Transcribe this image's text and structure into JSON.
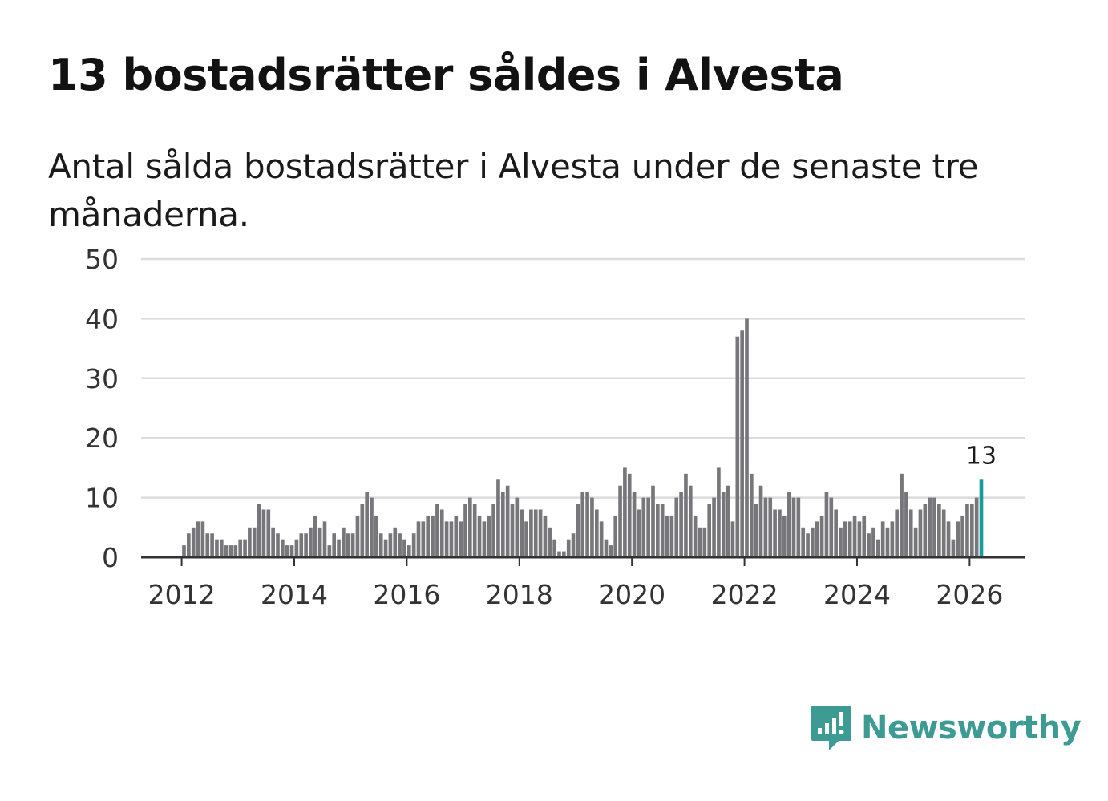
{
  "title": "13 bostadsrätter såldes i Alvesta",
  "subtitle": "Antal sålda bostadsrätter i Alvesta under de senaste tre månaderna.",
  "brand": {
    "name": "Newsworthy",
    "color": "#3d9b94"
  },
  "colors": {
    "bar": "#77767b",
    "highlight": "#1a9b97",
    "grid": "#dcdcdc",
    "axis": "#333333"
  },
  "chart_data": {
    "type": "bar",
    "title": "13 bostadsrätter såldes i Alvesta",
    "xlabel": "",
    "ylabel": "",
    "ylim": [
      0,
      50
    ],
    "yticks": [
      0,
      10,
      20,
      30,
      40,
      50
    ],
    "xticks": [
      "2012",
      "2014",
      "2016",
      "2018",
      "2020",
      "2022",
      "2024",
      "2026"
    ],
    "start": "2012-01",
    "frequency": "monthly",
    "values": [
      2,
      4,
      5,
      6,
      6,
      4,
      4,
      3,
      3,
      2,
      2,
      2,
      3,
      3,
      5,
      5,
      9,
      8,
      8,
      5,
      4,
      3,
      2,
      2,
      3,
      4,
      4,
      5,
      7,
      5,
      6,
      2,
      4,
      3,
      5,
      4,
      4,
      7,
      9,
      11,
      10,
      7,
      4,
      3,
      4,
      5,
      4,
      3,
      2,
      4,
      6,
      6,
      7,
      7,
      9,
      8,
      6,
      6,
      7,
      6,
      9,
      10,
      9,
      7,
      6,
      7,
      9,
      13,
      11,
      12,
      9,
      10,
      8,
      6,
      8,
      8,
      8,
      7,
      5,
      3,
      1,
      1,
      3,
      4,
      9,
      11,
      11,
      10,
      8,
      6,
      3,
      2,
      7,
      12,
      15,
      14,
      11,
      8,
      10,
      10,
      12,
      9,
      9,
      7,
      7,
      10,
      11,
      14,
      12,
      7,
      5,
      5,
      9,
      10,
      15,
      11,
      12,
      6,
      37,
      38,
      40,
      14,
      9,
      12,
      10,
      10,
      8,
      8,
      7,
      11,
      10,
      10,
      5,
      4,
      5,
      6,
      7,
      11,
      10,
      8,
      5,
      6,
      6,
      7,
      6,
      7,
      4,
      5,
      3,
      6,
      5,
      6,
      8,
      14,
      11,
      8,
      5,
      8,
      9,
      10,
      10,
      9,
      8,
      6,
      3,
      6,
      7,
      9,
      9,
      10,
      13
    ],
    "highlight": {
      "label": "13",
      "value": 13
    }
  }
}
